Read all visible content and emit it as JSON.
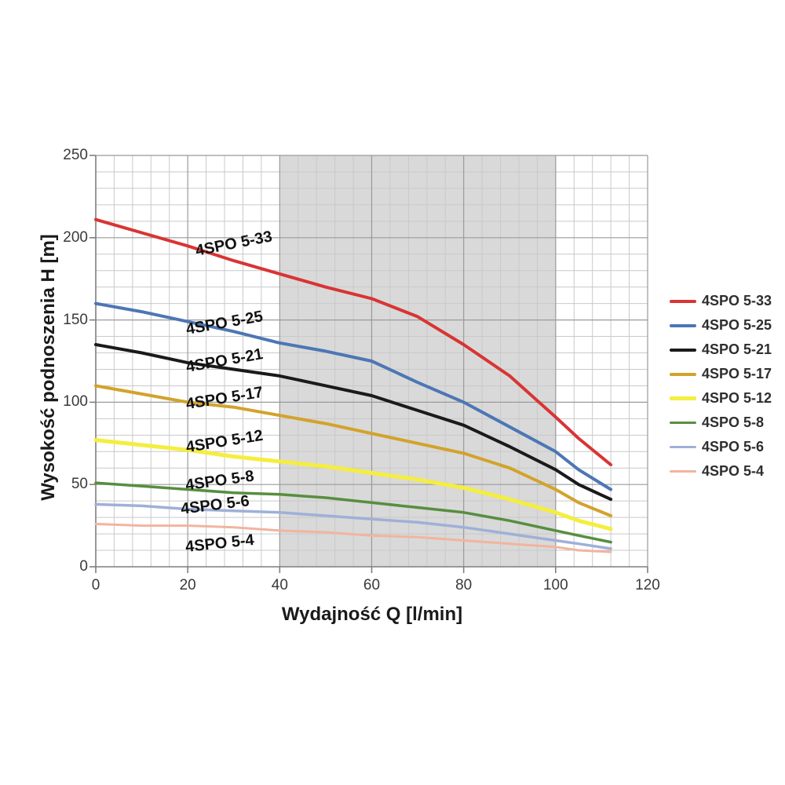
{
  "chart_data": {
    "type": "line",
    "title": "",
    "xlabel": "Wydajność Q [l/min]",
    "ylabel": "Wysokość podnoszenia H [m]",
    "xlim": [
      0,
      120
    ],
    "ylim": [
      0,
      250
    ],
    "x_major_ticks": [
      0,
      20,
      40,
      60,
      80,
      100,
      120
    ],
    "y_major_ticks": [
      0,
      50,
      100,
      150,
      200,
      250
    ],
    "x_minor_step": 4,
    "y_minor_step": 10,
    "grid": "on",
    "legend_position": "right",
    "shaded_region": {
      "x_from": 40,
      "x_to": 100,
      "color": "#d9d9d9"
    },
    "colors": {
      "minor_grid": "#c9c9c9",
      "major_grid": "#9a9a9a",
      "axis": "#7f7f7f"
    },
    "series": [
      {
        "name": "4SPO 5-33",
        "color": "#d93434",
        "width": 4,
        "x": [
          0,
          10,
          20,
          30,
          40,
          50,
          60,
          70,
          80,
          90,
          100,
          105,
          112
        ],
        "y": [
          211,
          203,
          195,
          186,
          178,
          170,
          163,
          152,
          135,
          116,
          91,
          78,
          62
        ]
      },
      {
        "name": "4SPO 5-25",
        "color": "#4d76b5",
        "width": 4,
        "x": [
          0,
          10,
          20,
          30,
          40,
          50,
          60,
          70,
          80,
          90,
          100,
          105,
          112
        ],
        "y": [
          160,
          155,
          149,
          143,
          136,
          131,
          125,
          112,
          100,
          85,
          70,
          59,
          47
        ]
      },
      {
        "name": "4SPO 5-21",
        "color": "#1a1a1a",
        "width": 4,
        "x": [
          0,
          10,
          20,
          30,
          40,
          50,
          60,
          70,
          80,
          90,
          100,
          105,
          112
        ],
        "y": [
          135,
          130,
          124,
          120,
          116,
          110,
          104,
          95,
          86,
          73,
          59,
          50,
          41
        ]
      },
      {
        "name": "4SPO 5-17",
        "color": "#d2a32b",
        "width": 4,
        "x": [
          0,
          10,
          20,
          30,
          40,
          50,
          60,
          70,
          80,
          90,
          100,
          105,
          112
        ],
        "y": [
          110,
          105,
          100,
          97,
          92,
          87,
          81,
          75,
          69,
          60,
          47,
          39,
          31
        ]
      },
      {
        "name": "4SPO 5-12",
        "color": "#f4ee3e",
        "width": 5,
        "x": [
          0,
          10,
          20,
          30,
          40,
          50,
          60,
          70,
          80,
          90,
          100,
          105,
          112
        ],
        "y": [
          77,
          74,
          71,
          67,
          64,
          61,
          57,
          53,
          48,
          41,
          33,
          28,
          23
        ]
      },
      {
        "name": "4SPO 5-8",
        "color": "#578e3f",
        "width": 3.5,
        "x": [
          0,
          10,
          20,
          30,
          40,
          50,
          60,
          70,
          80,
          90,
          100,
          105,
          112
        ],
        "y": [
          51,
          49,
          47,
          45,
          44,
          42,
          39,
          36,
          33,
          28,
          22,
          19,
          15
        ]
      },
      {
        "name": "4SPO 5-6",
        "color": "#9fb0d8",
        "width": 3.5,
        "x": [
          0,
          10,
          20,
          30,
          40,
          50,
          60,
          70,
          80,
          90,
          100,
          105,
          112
        ],
        "y": [
          38,
          37,
          35,
          34,
          33,
          31,
          29,
          27,
          24,
          20,
          16,
          14,
          11
        ]
      },
      {
        "name": "4SPO 5-4",
        "color": "#f2b49e",
        "width": 3,
        "x": [
          0,
          10,
          20,
          30,
          40,
          50,
          60,
          70,
          80,
          90,
          100,
          105,
          112
        ],
        "y": [
          26,
          25,
          25,
          24,
          22,
          21,
          19,
          18,
          16,
          14,
          12,
          10,
          9
        ]
      }
    ],
    "curve_labels": [
      {
        "text": "4SPO 5-33",
        "q": 30,
        "h": 196
      },
      {
        "text": "4SPO 5-25",
        "q": 28,
        "h": 148
      },
      {
        "text": "4SPO 5-21",
        "q": 28,
        "h": 125
      },
      {
        "text": "4SPO 5-17",
        "q": 28,
        "h": 102
      },
      {
        "text": "4SPO 5-12",
        "q": 28,
        "h": 76
      },
      {
        "text": "4SPO 5-8",
        "q": 27,
        "h": 52
      },
      {
        "text": "4SPO 5-6",
        "q": 26,
        "h": 37
      },
      {
        "text": "4SPO 5-4",
        "q": 27,
        "h": 14
      }
    ]
  }
}
